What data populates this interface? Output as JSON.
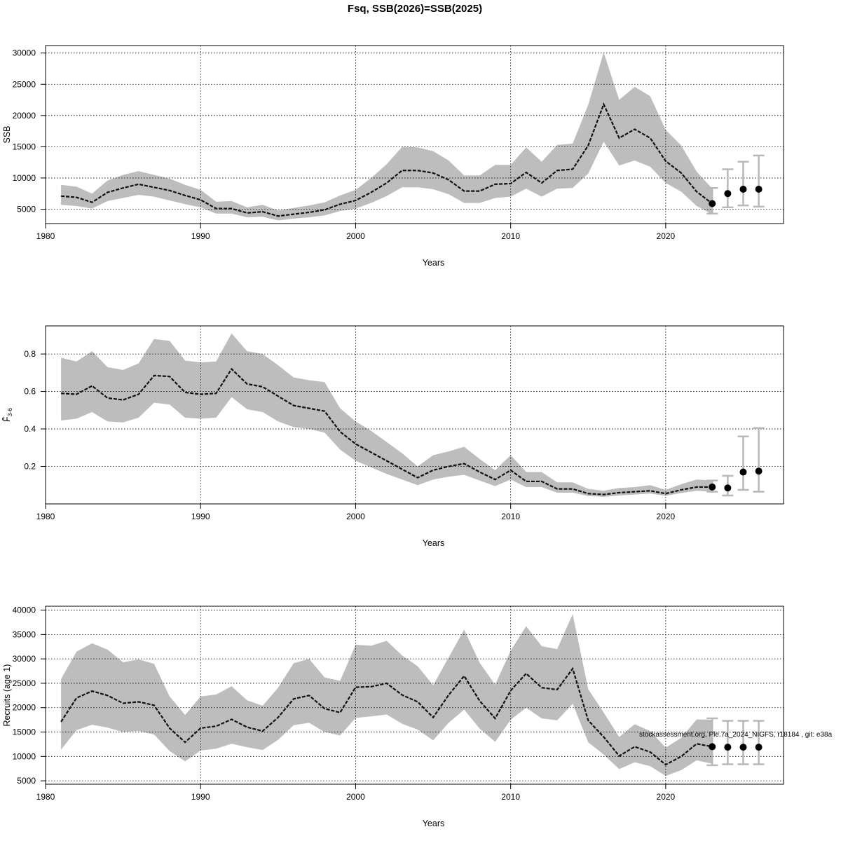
{
  "figure": {
    "title": "Fsq, SSB(2026)=SSB(2025)",
    "footnote": "stockassessment.org, Ple.7a_2024_NIGFS, r18184 , git: e38a"
  },
  "chart_data": [
    {
      "type": "line",
      "ylabel": "SSB",
      "xlabel": "Years",
      "xlim": [
        1980,
        2027.6
      ],
      "ylim": [
        2700,
        31200
      ],
      "x_ticks": [
        1980,
        1990,
        2000,
        2010,
        2020
      ],
      "y_ticks": [
        5000,
        10000,
        15000,
        20000,
        25000,
        30000
      ],
      "grid": true,
      "series": [
        {
          "kind": "estimate_with_ci",
          "x": [
            1981,
            1982,
            1983,
            1984,
            1985,
            1986,
            1987,
            1988,
            1989,
            1990,
            1991,
            1992,
            1993,
            1994,
            1995,
            1996,
            1997,
            1998,
            1999,
            2000,
            2001,
            2002,
            2003,
            2004,
            2005,
            2006,
            2007,
            2008,
            2009,
            2010,
            2011,
            2012,
            2013,
            2014,
            2015,
            2016,
            2017,
            2018,
            2019,
            2020,
            2021,
            2022,
            2023
          ],
          "values": [
            7100,
            6900,
            6100,
            7700,
            8400,
            9000,
            8500,
            8000,
            7200,
            6500,
            5100,
            5100,
            4400,
            4600,
            3900,
            4200,
            4500,
            4900,
            5800,
            6400,
            7700,
            9200,
            11200,
            11200,
            10800,
            9700,
            7900,
            7900,
            9000,
            9100,
            10900,
            9200,
            11200,
            11400,
            15200,
            21800,
            16400,
            17800,
            16400,
            12700,
            10800,
            7800,
            5900
          ],
          "lower": [
            5700,
            5500,
            5100,
            6300,
            6800,
            7300,
            7000,
            6400,
            5800,
            5300,
            4300,
            4300,
            3700,
            3800,
            3200,
            3500,
            3700,
            4000,
            4700,
            5100,
            6000,
            7100,
            8500,
            8500,
            8200,
            7400,
            6000,
            6000,
            6800,
            7000,
            8300,
            7000,
            8300,
            8400,
            10700,
            15800,
            12000,
            12800,
            11800,
            9200,
            7800,
            5500,
            4200
          ],
          "upper": [
            8900,
            8600,
            7500,
            9600,
            10500,
            11100,
            10500,
            9900,
            8900,
            8100,
            6200,
            6300,
            5300,
            5700,
            4800,
            5200,
            5600,
            6100,
            7200,
            8100,
            10000,
            12200,
            15000,
            14900,
            14300,
            12800,
            10400,
            10400,
            12100,
            12100,
            14900,
            12600,
            15300,
            15500,
            21700,
            30100,
            22500,
            24600,
            23100,
            17700,
            15200,
            11000,
            8300
          ]
        }
      ],
      "forecast": {
        "x": [
          2023,
          2024,
          2025,
          2026
        ],
        "values": [
          5900,
          7500,
          8200,
          8200
        ],
        "lower": [
          4300,
          5300,
          5600,
          5400
        ],
        "upper": [
          8400,
          11400,
          12600,
          13600
        ]
      }
    },
    {
      "type": "line",
      "ylabel": "F̄",
      "ylabel_sub": "3-6",
      "xlabel": "Years",
      "xlim": [
        1980,
        2027.6
      ],
      "ylim": [
        0,
        0.95
      ],
      "x_ticks": [
        1980,
        1990,
        2000,
        2010,
        2020
      ],
      "y_ticks": [
        0.2,
        0.4,
        0.6,
        0.8
      ],
      "grid": true,
      "series": [
        {
          "kind": "estimate_with_ci",
          "x": [
            1981,
            1982,
            1983,
            1984,
            1985,
            1986,
            1987,
            1988,
            1989,
            1990,
            1991,
            1992,
            1993,
            1994,
            1995,
            1996,
            1997,
            1998,
            1999,
            2000,
            2001,
            2002,
            2003,
            2004,
            2005,
            2006,
            2007,
            2008,
            2009,
            2010,
            2011,
            2012,
            2013,
            2014,
            2015,
            2016,
            2017,
            2018,
            2019,
            2020,
            2021,
            2022,
            2023
          ],
          "values": [
            0.59,
            0.585,
            0.63,
            0.565,
            0.555,
            0.585,
            0.685,
            0.68,
            0.595,
            0.585,
            0.59,
            0.72,
            0.64,
            0.625,
            0.575,
            0.525,
            0.51,
            0.495,
            0.385,
            0.32,
            0.275,
            0.23,
            0.185,
            0.14,
            0.18,
            0.2,
            0.215,
            0.17,
            0.13,
            0.18,
            0.12,
            0.12,
            0.08,
            0.08,
            0.055,
            0.05,
            0.06,
            0.065,
            0.07,
            0.055,
            0.075,
            0.09,
            0.09
          ],
          "lower": [
            0.445,
            0.455,
            0.49,
            0.44,
            0.435,
            0.46,
            0.54,
            0.53,
            0.46,
            0.455,
            0.46,
            0.57,
            0.505,
            0.49,
            0.44,
            0.41,
            0.4,
            0.38,
            0.29,
            0.23,
            0.195,
            0.16,
            0.13,
            0.1,
            0.13,
            0.145,
            0.155,
            0.125,
            0.095,
            0.13,
            0.09,
            0.09,
            0.06,
            0.06,
            0.042,
            0.038,
            0.045,
            0.05,
            0.055,
            0.043,
            0.058,
            0.07,
            0.065
          ],
          "upper": [
            0.78,
            0.76,
            0.815,
            0.73,
            0.715,
            0.75,
            0.88,
            0.87,
            0.765,
            0.755,
            0.76,
            0.91,
            0.815,
            0.8,
            0.74,
            0.675,
            0.66,
            0.65,
            0.51,
            0.44,
            0.39,
            0.33,
            0.27,
            0.2,
            0.26,
            0.28,
            0.305,
            0.24,
            0.18,
            0.26,
            0.17,
            0.17,
            0.115,
            0.115,
            0.08,
            0.07,
            0.085,
            0.09,
            0.1,
            0.075,
            0.105,
            0.13,
            0.125
          ]
        }
      ],
      "forecast": {
        "x": [
          2023,
          2024,
          2025,
          2026
        ],
        "values": [
          0.09,
          0.085,
          0.17,
          0.175
        ],
        "lower": [
          0.065,
          0.045,
          0.075,
          0.065
        ],
        "upper": [
          0.125,
          0.15,
          0.36,
          0.405
        ]
      }
    },
    {
      "type": "line",
      "ylabel": "Recruits (age 1)",
      "xlabel": "Years",
      "xlim": [
        1980,
        2027.6
      ],
      "ylim": [
        4300,
        40800
      ],
      "x_ticks": [
        1980,
        1990,
        2000,
        2010,
        2020
      ],
      "y_ticks": [
        5000,
        10000,
        15000,
        20000,
        25000,
        30000,
        35000,
        40000
      ],
      "grid": true,
      "series": [
        {
          "kind": "estimate_with_ci",
          "x": [
            1981,
            1982,
            1983,
            1984,
            1985,
            1986,
            1987,
            1988,
            1989,
            1990,
            1991,
            1992,
            1993,
            1994,
            1995,
            1996,
            1997,
            1998,
            1999,
            2000,
            2001,
            2002,
            2003,
            2004,
            2005,
            2006,
            2007,
            2008,
            2009,
            2010,
            2011,
            2012,
            2013,
            2014,
            2015,
            2016,
            2017,
            2018,
            2019,
            2020,
            2021,
            2022,
            2023
          ],
          "values": [
            17100,
            22000,
            23400,
            22500,
            20900,
            21200,
            20500,
            15800,
            12900,
            15800,
            16200,
            17600,
            16000,
            15200,
            18000,
            21800,
            22500,
            19800,
            19000,
            24200,
            24300,
            25000,
            22600,
            21200,
            18000,
            22600,
            26500,
            21400,
            17800,
            23500,
            27000,
            24100,
            23700,
            28000,
            17400,
            14000,
            10100,
            12000,
            10900,
            8300,
            10000,
            12600,
            12000
          ],
          "lower": [
            11400,
            15400,
            16500,
            15900,
            15000,
            15200,
            14500,
            11100,
            9000,
            11200,
            11600,
            12600,
            11900,
            11300,
            13400,
            16400,
            16900,
            15000,
            14300,
            17900,
            18200,
            18600,
            16700,
            15500,
            13300,
            16900,
            19600,
            15700,
            13000,
            17500,
            20000,
            17800,
            17400,
            20800,
            12900,
            10400,
            7400,
            8800,
            8000,
            6000,
            7200,
            9200,
            8500
          ],
          "upper": [
            25900,
            31500,
            33200,
            31900,
            29300,
            29900,
            29000,
            22300,
            18500,
            22300,
            22700,
            24400,
            21500,
            20400,
            24100,
            29100,
            30000,
            26200,
            25500,
            32900,
            32700,
            33700,
            30700,
            28500,
            24600,
            30300,
            36000,
            29200,
            24700,
            31700,
            36700,
            32600,
            32000,
            39200,
            23800,
            19000,
            14000,
            16600,
            15200,
            11800,
            13800,
            17600,
            17500
          ]
        }
      ],
      "forecast": {
        "x": [
          2023,
          2024,
          2025,
          2026
        ],
        "values": [
          12000,
          11900,
          11900,
          11900
        ],
        "lower": [
          8200,
          8400,
          8400,
          8400
        ],
        "upper": [
          17800,
          17300,
          17300,
          17300
        ]
      }
    }
  ]
}
